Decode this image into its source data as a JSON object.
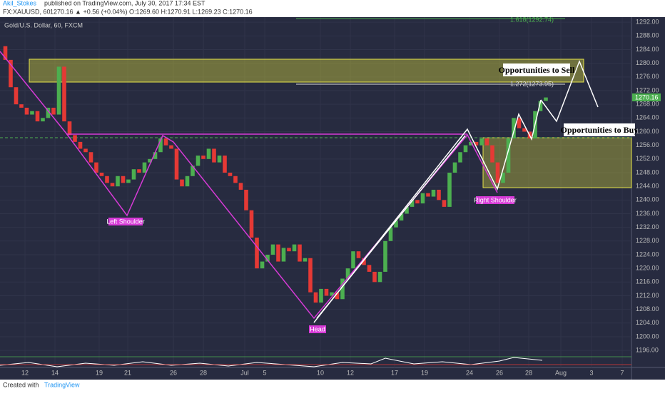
{
  "chart_data": {
    "type": "candlestick",
    "author": "Akil_Stokes",
    "published": "published on TradingView.com, July 30, 2017 17:34 EST",
    "symbol": "FX:XAUUSD, 60",
    "quote": "1270.16 ▲ +0.56 (+0.04%) O:1269.60 H:1270.91 L:1269.23 C:1270.16",
    "title": "Gold/U.S. Dollar, 60, FXCM",
    "footer": "Created with",
    "brand": "TradingView",
    "annotations": [
      "Opportunities to Sell",
      "Opportunities to Buy",
      "1.272(1273.95)",
      "1.618(1292.74)",
      "Left Shoulder",
      "Head",
      "Right Shoulder"
    ],
    "last_price": "1270.16",
    "up_color": "#4caf50",
    "down_color": "#e53935",
    "values": [
      1285,
      1281,
      1273,
      1268,
      1267,
      1265,
      1266,
      1263,
      1264,
      1267,
      1265,
      1279,
      1263,
      1259,
      1257,
      1255,
      1254,
      1251,
      1248,
      1247,
      1245,
      1244,
      1247,
      1245,
      1246,
      1249,
      1248,
      1251,
      1252,
      1254,
      1258,
      1256,
      1255,
      1246,
      1244,
      1247,
      1250,
      1253,
      1252,
      1255,
      1251,
      1253,
      1248,
      1247,
      1245,
      1243,
      1237,
      1229,
      1220,
      1222,
      1224,
      1227,
      1222,
      1226,
      1225,
      1227,
      1222,
      1223,
      1213,
      1210,
      1214,
      1212,
      1213,
      1211,
      1217,
      1220,
      1225,
      1223,
      1221,
      1219,
      1216,
      1219,
      1228,
      1232,
      1234,
      1236,
      1238,
      1240,
      1239,
      1242,
      1241,
      1243,
      1240,
      1238,
      1248,
      1251,
      1254,
      1256,
      1257,
      1256,
      1258,
      1256,
      1251,
      1245,
      1248,
      1258,
      1264,
      1261,
      1260,
      1258,
      1266,
      1269,
      1270
    ],
    "xlim": [
      0,
      118
    ],
    "xticks": [
      {
        "value": 4.67,
        "label": "12"
      },
      {
        "value": 10.27,
        "label": "14"
      },
      {
        "value": 18.53,
        "label": "19"
      },
      {
        "value": 23.87,
        "label": "21"
      },
      {
        "value": 32.4,
        "label": "26"
      },
      {
        "value": 38,
        "label": "28"
      },
      {
        "value": 45.73,
        "label": "Jul"
      },
      {
        "value": 49.47,
        "label": "5"
      },
      {
        "value": 59.87,
        "label": "10"
      },
      {
        "value": 65.47,
        "label": "12"
      },
      {
        "value": 73.73,
        "label": "17"
      },
      {
        "value": 79.33,
        "label": "19"
      },
      {
        "value": 87.73,
        "label": "24"
      },
      {
        "value": 93.33,
        "label": "26"
      },
      {
        "value": 98.8,
        "label": "28"
      },
      {
        "value": 104.8,
        "label": "Aug"
      },
      {
        "value": 110.53,
        "label": "3"
      },
      {
        "value": 116.27,
        "label": "7"
      }
    ],
    "ylim": [
      1195.4,
      1293.5
    ],
    "yticks": [
      {
        "value": 1196,
        "label": "1196.00"
      },
      {
        "value": 1200,
        "label": "1200.00"
      },
      {
        "value": 1204,
        "label": "1204.00"
      },
      {
        "value": 1208,
        "label": "1208.00"
      },
      {
        "value": 1212,
        "label": "1212.00"
      },
      {
        "value": 1216,
        "label": "1216.00"
      },
      {
        "value": 1220,
        "label": "1220.00"
      },
      {
        "value": 1224,
        "label": "1224.00"
      },
      {
        "value": 1228,
        "label": "1228.00"
      },
      {
        "value": 1232,
        "label": "1232.00"
      },
      {
        "value": 1236,
        "label": "1236.00"
      },
      {
        "value": 1240,
        "label": "1240.00"
      },
      {
        "value": 1244,
        "label": "1244.00"
      },
      {
        "value": 1248,
        "label": "1248.00"
      },
      {
        "value": 1252,
        "label": "1252.00"
      },
      {
        "value": 1256,
        "label": "1256.00"
      },
      {
        "value": 1260,
        "label": "1260.00"
      },
      {
        "value": 1264,
        "label": "1264.00"
      },
      {
        "value": 1268,
        "label": "1268.00"
      },
      {
        "value": 1272,
        "label": "1272.00"
      },
      {
        "value": 1276,
        "label": "1276.00"
      },
      {
        "value": 1280,
        "label": "1280.00"
      },
      {
        "value": 1284,
        "label": "1284.00"
      },
      {
        "value": 1288,
        "label": "1288.00"
      },
      {
        "value": 1292,
        "label": "1292.00"
      }
    ],
    "grid": true
  }
}
